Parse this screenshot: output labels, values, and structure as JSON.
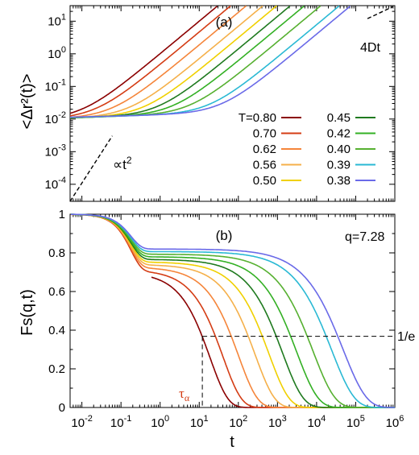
{
  "chart_data": [
    {
      "panel_label": "(a)",
      "type": "line",
      "ylabel": "<Δr²(t)>",
      "x_scale": "log",
      "y_scale": "log",
      "xlim": [
        0.005,
        1000000
      ],
      "ylim": [
        3e-05,
        30
      ],
      "x_tick_values": [
        0.01,
        0.1,
        1,
        10,
        100,
        1000,
        10000,
        100000,
        1000000
      ],
      "y_ticks": [
        {
          "v": 0.0001,
          "m": "10",
          "e": "-4"
        },
        {
          "v": 0.001,
          "m": "10",
          "e": "-3"
        },
        {
          "v": 0.01,
          "m": "10",
          "e": "-2"
        },
        {
          "v": 0.1,
          "m": "10",
          "e": "-1"
        },
        {
          "v": 1,
          "m": "10",
          "e": "0"
        },
        {
          "v": 10,
          "m": "10",
          "e": "1"
        }
      ],
      "annotations": [
        {
          "text": "∝t",
          "sup": "2",
          "at": [
            0.04,
            0.0004
          ]
        },
        {
          "text": "4Dt",
          "at": [
            120000.0,
            4.5
          ]
        }
      ],
      "legend": {
        "placement": "bottom-right",
        "title_prefix": "T=",
        "entries": [
          "0.80",
          "0.70",
          "0.62",
          "0.56",
          "0.50",
          "0.45",
          "0.42",
          "0.40",
          "0.39",
          "0.38"
        ]
      },
      "series": [
        {
          "temperature": 0.8,
          "color": "#8b0000",
          "tau_alpha": 14
        },
        {
          "temperature": 0.7,
          "color": "#d43c14",
          "tau_alpha": 30
        },
        {
          "temperature": 0.62,
          "color": "#f5853a",
          "tau_alpha": 75
        },
        {
          "temperature": 0.56,
          "color": "#f5b04a",
          "tau_alpha": 200
        },
        {
          "temperature": 0.5,
          "color": "#f0d000",
          "tau_alpha": 450
        },
        {
          "temperature": 0.45,
          "color": "#1f7a1f",
          "tau_alpha": 1000
        },
        {
          "temperature": 0.42,
          "color": "#33b024",
          "tau_alpha": 2300
        },
        {
          "temperature": 0.4,
          "color": "#56b030",
          "tau_alpha": 6000
        },
        {
          "temperature": 0.39,
          "color": "#2ab9d4",
          "tau_alpha": 18000
        },
        {
          "temperature": 0.38,
          "color": "#6a6ae8",
          "tau_alpha": 35000
        }
      ]
    },
    {
      "panel_label": "(b)",
      "type": "line",
      "xlabel": "t",
      "ylabel": "Fs(q,t)",
      "x_scale": "log",
      "xlim": [
        0.005,
        1000000
      ],
      "ylim": [
        0,
        1
      ],
      "x_ticks": [
        {
          "v": 0.01,
          "m": "10",
          "e": "-2"
        },
        {
          "v": 0.1,
          "m": "10",
          "e": "-1"
        },
        {
          "v": 1,
          "m": "10",
          "e": "0"
        },
        {
          "v": 10,
          "m": "10",
          "e": "1"
        },
        {
          "v": 100,
          "m": "10",
          "e": "2"
        },
        {
          "v": 1000,
          "m": "10",
          "e": "3"
        },
        {
          "v": 10000,
          "m": "10",
          "e": "4"
        },
        {
          "v": 100000,
          "m": "10",
          "e": "5"
        },
        {
          "v": 1000000,
          "m": "10",
          "e": "6"
        }
      ],
      "y_ticks": [
        "0",
        "0.2",
        "0.4",
        "0.6",
        "0.8",
        "1"
      ],
      "y_tick_values": [
        0,
        0.2,
        0.4,
        0.6,
        0.8,
        1
      ],
      "annotations": [
        {
          "text": "q=7.28"
        },
        {
          "text": "1/e",
          "y": 0.368
        },
        {
          "text": "τα",
          "x": 12
        }
      ]
    }
  ]
}
